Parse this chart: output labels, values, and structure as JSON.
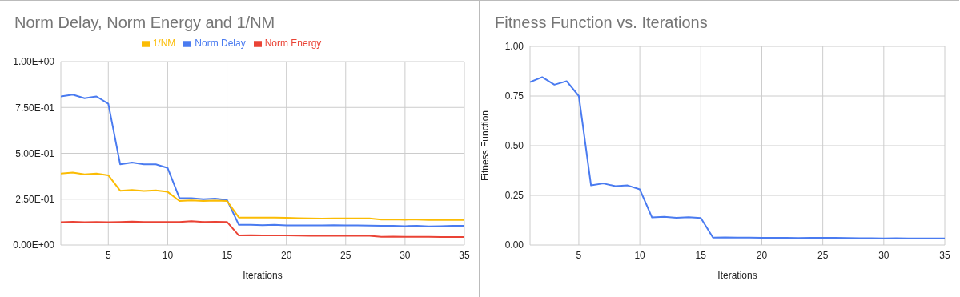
{
  "chart_data": [
    {
      "type": "line",
      "title": "Norm Delay, Norm Energy and 1/NM",
      "xlabel": "Iterations",
      "x": [
        1,
        2,
        3,
        4,
        5,
        6,
        7,
        8,
        9,
        10,
        11,
        12,
        13,
        14,
        15,
        16,
        17,
        18,
        19,
        20,
        21,
        22,
        23,
        24,
        25,
        26,
        27,
        28,
        29,
        30,
        31,
        32,
        33,
        34,
        35
      ],
      "series": [
        {
          "name": "Norm Delay",
          "color": "#4a7bf0",
          "values": [
            0.81,
            0.82,
            0.8,
            0.81,
            0.77,
            0.44,
            0.45,
            0.44,
            0.44,
            0.42,
            0.255,
            0.256,
            0.25,
            0.253,
            0.246,
            0.11,
            0.11,
            0.108,
            0.11,
            0.107,
            0.107,
            0.107,
            0.107,
            0.108,
            0.107,
            0.107,
            0.106,
            0.105,
            0.105,
            0.103,
            0.105,
            0.102,
            0.103,
            0.105,
            0.105
          ]
        },
        {
          "name": "Norm Energy",
          "color": "#ea4335",
          "values": [
            0.124,
            0.127,
            0.125,
            0.126,
            0.125,
            0.126,
            0.128,
            0.126,
            0.126,
            0.126,
            0.126,
            0.13,
            0.126,
            0.127,
            0.126,
            0.052,
            0.053,
            0.052,
            0.052,
            0.052,
            0.051,
            0.05,
            0.05,
            0.05,
            0.05,
            0.05,
            0.05,
            0.045,
            0.046,
            0.045,
            0.045,
            0.045,
            0.044,
            0.044,
            0.044
          ]
        },
        {
          "name": "1/NM",
          "color": "#fbbc04",
          "values": [
            0.39,
            0.395,
            0.385,
            0.39,
            0.38,
            0.296,
            0.3,
            0.295,
            0.298,
            0.29,
            0.24,
            0.243,
            0.24,
            0.242,
            0.24,
            0.15,
            0.15,
            0.15,
            0.15,
            0.148,
            0.146,
            0.145,
            0.144,
            0.145,
            0.145,
            0.145,
            0.145,
            0.139,
            0.14,
            0.138,
            0.139,
            0.137,
            0.136,
            0.136,
            0.136
          ]
        }
      ],
      "xlim": [
        1,
        35
      ],
      "xticks": [
        5,
        10,
        15,
        20,
        25,
        30,
        35
      ],
      "ylim": [
        0,
        1
      ],
      "yticks": [
        {
          "value": 0,
          "label": "0.00E+00"
        },
        {
          "value": 0.25,
          "label": "2.50E-01"
        },
        {
          "value": 0.5,
          "label": "5.00E-01"
        },
        {
          "value": 0.75,
          "label": "7.50E-01"
        },
        {
          "value": 1,
          "label": "1.00E+00"
        }
      ],
      "grid": true,
      "legend": "top",
      "marker": "none",
      "line_style": "solid"
    },
    {
      "type": "line",
      "title": "Fitness Function vs. Iterations",
      "xlabel": "Iterations",
      "ylabel": "Fitness Function",
      "x": [
        1,
        2,
        3,
        4,
        5,
        6,
        7,
        8,
        9,
        10,
        11,
        12,
        13,
        14,
        15,
        16,
        17,
        18,
        19,
        20,
        21,
        22,
        23,
        24,
        25,
        26,
        27,
        28,
        29,
        30,
        31,
        32,
        33,
        34,
        35
      ],
      "series": [
        {
          "color": "#4a7bf0",
          "values": [
            0.82,
            0.845,
            0.807,
            0.825,
            0.75,
            0.3,
            0.31,
            0.296,
            0.3,
            0.28,
            0.139,
            0.142,
            0.137,
            0.14,
            0.136,
            0.037,
            0.038,
            0.037,
            0.037,
            0.036,
            0.036,
            0.036,
            0.035,
            0.036,
            0.036,
            0.036,
            0.035,
            0.034,
            0.034,
            0.033,
            0.034,
            0.033,
            0.033,
            0.033,
            0.033
          ]
        }
      ],
      "xlim": [
        1,
        35
      ],
      "xticks": [
        5,
        10,
        15,
        20,
        25,
        30,
        35
      ],
      "ylim": [
        0,
        1
      ],
      "yticks": [
        {
          "value": 0,
          "label": "0.00"
        },
        {
          "value": 0.25,
          "label": "0.25"
        },
        {
          "value": 0.5,
          "label": "0.50"
        },
        {
          "value": 0.75,
          "label": "0.75"
        },
        {
          "value": 1,
          "label": "1.00"
        }
      ],
      "grid": true,
      "legend": false,
      "marker": "none",
      "line_style": "solid"
    }
  ]
}
